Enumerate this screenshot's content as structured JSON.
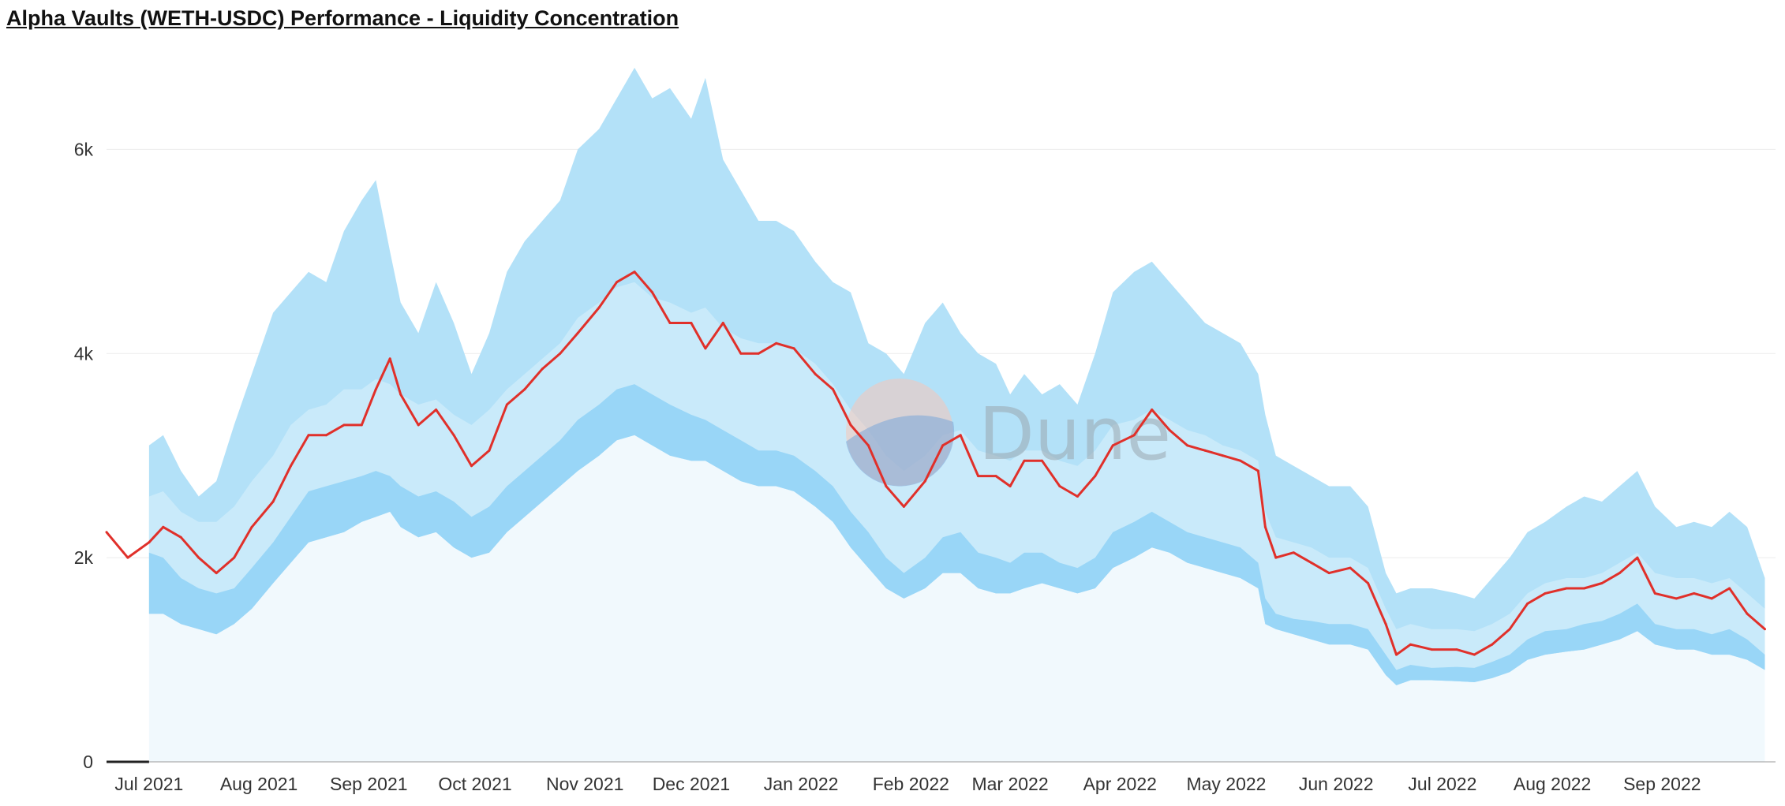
{
  "title": "Alpha Vaults (WETH-USDC) Performance - Liquidity Concentration",
  "watermark": "Dune",
  "colors": {
    "outer_band": "#b3e1f8",
    "middle_band": "#c9eafa",
    "inner_band": "#99d6f7",
    "base_fill": "#f1f9fd",
    "price_line": "#e0302a",
    "grid": "#ebebeb",
    "axis": "#222222"
  },
  "chart_data": {
    "type": "area",
    "title": "Alpha Vaults (WETH-USDC) Performance - Liquidity Concentration",
    "xlabel": "",
    "ylabel": "",
    "ylim": [
      0,
      7000
    ],
    "y_ticks": [
      {
        "value": 0,
        "label": "0"
      },
      {
        "value": 2000,
        "label": "2k"
      },
      {
        "value": 4000,
        "label": "4k"
      },
      {
        "value": 6000,
        "label": "6k"
      }
    ],
    "x_ticks": [
      {
        "date": "2021-07-01",
        "label": "Jul 2021"
      },
      {
        "date": "2021-08-01",
        "label": "Aug 2021"
      },
      {
        "date": "2021-09-01",
        "label": "Sep 2021"
      },
      {
        "date": "2021-10-01",
        "label": "Oct 2021"
      },
      {
        "date": "2021-11-01",
        "label": "Nov 2021"
      },
      {
        "date": "2021-12-01",
        "label": "Dec 2021"
      },
      {
        "date": "2022-01-01",
        "label": "Jan 2022"
      },
      {
        "date": "2022-02-01",
        "label": "Feb 2022"
      },
      {
        "date": "2022-03-01",
        "label": "Mar 2022"
      },
      {
        "date": "2022-04-01",
        "label": "Apr 2022"
      },
      {
        "date": "2022-05-01",
        "label": "May 2022"
      },
      {
        "date": "2022-06-01",
        "label": "Jun 2022"
      },
      {
        "date": "2022-07-01",
        "label": "Jul 2022"
      },
      {
        "date": "2022-08-01",
        "label": "Aug 2022"
      },
      {
        "date": "2022-09-01",
        "label": "Sep 2022"
      }
    ],
    "grid": true,
    "legend": "none",
    "x": [
      "2021-06-19",
      "2021-06-25",
      "2021-07-01",
      "2021-07-05",
      "2021-07-10",
      "2021-07-15",
      "2021-07-20",
      "2021-07-25",
      "2021-07-30",
      "2021-08-05",
      "2021-08-10",
      "2021-08-15",
      "2021-08-20",
      "2021-08-25",
      "2021-08-30",
      "2021-09-03",
      "2021-09-07",
      "2021-09-10",
      "2021-09-15",
      "2021-09-20",
      "2021-09-25",
      "2021-09-30",
      "2021-10-05",
      "2021-10-10",
      "2021-10-15",
      "2021-10-20",
      "2021-10-25",
      "2021-10-30",
      "2021-11-05",
      "2021-11-10",
      "2021-11-15",
      "2021-11-20",
      "2021-11-25",
      "2021-12-01",
      "2021-12-05",
      "2021-12-10",
      "2021-12-15",
      "2021-12-20",
      "2021-12-25",
      "2021-12-30",
      "2022-01-05",
      "2022-01-10",
      "2022-01-15",
      "2022-01-20",
      "2022-01-25",
      "2022-01-30",
      "2022-02-05",
      "2022-02-10",
      "2022-02-15",
      "2022-02-20",
      "2022-02-25",
      "2022-03-01",
      "2022-03-05",
      "2022-03-10",
      "2022-03-15",
      "2022-03-20",
      "2022-03-25",
      "2022-03-30",
      "2022-04-05",
      "2022-04-10",
      "2022-04-15",
      "2022-04-20",
      "2022-04-25",
      "2022-04-30",
      "2022-05-05",
      "2022-05-10",
      "2022-05-12",
      "2022-05-15",
      "2022-05-20",
      "2022-05-25",
      "2022-05-30",
      "2022-06-05",
      "2022-06-10",
      "2022-06-15",
      "2022-06-18",
      "2022-06-22",
      "2022-06-28",
      "2022-07-05",
      "2022-07-10",
      "2022-07-15",
      "2022-07-20",
      "2022-07-25",
      "2022-07-30",
      "2022-08-05",
      "2022-08-10",
      "2022-08-15",
      "2022-08-20",
      "2022-08-25",
      "2022-08-30",
      "2022-09-05",
      "2022-09-10",
      "2022-09-15",
      "2022-09-20",
      "2022-09-25",
      "2022-09-30"
    ],
    "series": [
      {
        "values": [
          2250,
          2000,
          2150,
          2300,
          2200,
          2000,
          1850,
          2000,
          2300,
          2550,
          2900,
          3200,
          3200,
          3300,
          3300,
          3650,
          3950,
          3600,
          3300,
          3450,
          3200,
          2900,
          3050,
          3500,
          3650,
          3850,
          4000,
          4200,
          4450,
          4700,
          4800,
          4600,
          4300,
          4300,
          4050,
          4300,
          4000,
          4000,
          4100,
          4050,
          3800,
          3650,
          3300,
          3100,
          2700,
          2500,
          2750,
          3100,
          3200,
          2800,
          2800,
          2700,
          2950,
          2950,
          2700,
          2600,
          2800,
          3100,
          3200,
          3450,
          3250,
          3100,
          3050,
          3000,
          2950,
          2850,
          2300,
          2000,
          2050,
          1950,
          1850,
          1900,
          1750,
          1350,
          1050,
          1150,
          1100,
          1100,
          1050,
          1150,
          1300,
          1550,
          1650,
          1700,
          1700,
          1750,
          1850,
          2000,
          1650,
          1600,
          1650,
          1600,
          1700,
          1450,
          1300
        ]
      }
    ],
    "bands": {
      "upper_outer": [
        null,
        null,
        3100,
        3200,
        2850,
        2600,
        2750,
        3300,
        3800,
        4400,
        4600,
        4800,
        4700,
        5200,
        5500,
        5700,
        5000,
        4500,
        4200,
        4700,
        4300,
        3800,
        4200,
        4800,
        5100,
        5300,
        5500,
        6000,
        6200,
        6500,
        6800,
        6500,
        6600,
        6300,
        6700,
        5900,
        5600,
        5300,
        5300,
        5200,
        4900,
        4700,
        4600,
        4100,
        4000,
        3800,
        4300,
        4500,
        4200,
        4000,
        3900,
        3600,
        3800,
        3600,
        3700,
        3500,
        4000,
        4600,
        4800,
        4900,
        4700,
        4500,
        4300,
        4200,
        4100,
        3800,
        3400,
        3000,
        2900,
        2800,
        2700,
        2700,
        2500,
        1850,
        1650,
        1700,
        1700,
        1650,
        1600,
        1800,
        2000,
        2250,
        2350,
        2500,
        2600,
        2550,
        2700,
        2850,
        2500,
        2300,
        2350,
        2300,
        2450,
        2300,
        1800
      ],
      "upper_inner": [
        null,
        null,
        2600,
        2650,
        2450,
        2350,
        2350,
        2500,
        2750,
        3000,
        3300,
        3450,
        3500,
        3650,
        3650,
        3750,
        3700,
        3600,
        3500,
        3550,
        3400,
        3300,
        3450,
        3650,
        3800,
        3950,
        4100,
        4350,
        4500,
        4650,
        4700,
        4550,
        4500,
        4400,
        4450,
        4250,
        4150,
        4100,
        4100,
        4050,
        3900,
        3700,
        3450,
        3250,
        3000,
        2850,
        3000,
        3200,
        3250,
        3050,
        3000,
        2950,
        3050,
        3050,
        2950,
        2900,
        3050,
        3300,
        3350,
        3450,
        3350,
        3250,
        3200,
        3100,
        3050,
        2950,
        2450,
        2200,
        2150,
        2100,
        2000,
        2000,
        1900,
        1500,
        1300,
        1350,
        1300,
        1300,
        1280,
        1350,
        1450,
        1650,
        1750,
        1800,
        1800,
        1850,
        1950,
        2050,
        1850,
        1800,
        1800,
        1750,
        1800,
        1650,
        1500
      ],
      "lower_inner": [
        null,
        null,
        2050,
        2000,
        1800,
        1700,
        1650,
        1700,
        1900,
        2150,
        2400,
        2650,
        2700,
        2750,
        2800,
        2850,
        2800,
        2700,
        2600,
        2650,
        2550,
        2400,
        2500,
        2700,
        2850,
        3000,
        3150,
        3350,
        3500,
        3650,
        3700,
        3600,
        3500,
        3400,
        3350,
        3250,
        3150,
        3050,
        3050,
        3000,
        2850,
        2700,
        2450,
        2250,
        2000,
        1850,
        2000,
        2200,
        2250,
        2050,
        2000,
        1950,
        2050,
        2050,
        1950,
        1900,
        2000,
        2250,
        2350,
        2450,
        2350,
        2250,
        2200,
        2150,
        2100,
        1950,
        1600,
        1450,
        1400,
        1380,
        1350,
        1350,
        1300,
        1050,
        900,
        950,
        920,
        930,
        920,
        980,
        1050,
        1200,
        1280,
        1300,
        1350,
        1380,
        1450,
        1550,
        1350,
        1300,
        1300,
        1250,
        1300,
        1200,
        1050
      ],
      "lower_outer": [
        null,
        null,
        1450,
        1450,
        1350,
        1300,
        1250,
        1350,
        1500,
        1750,
        1950,
        2150,
        2200,
        2250,
        2350,
        2400,
        2450,
        2300,
        2200,
        2250,
        2100,
        2000,
        2050,
        2250,
        2400,
        2550,
        2700,
        2850,
        3000,
        3150,
        3200,
        3100,
        3000,
        2950,
        2950,
        2850,
        2750,
        2700,
        2700,
        2650,
        2500,
        2350,
        2100,
        1900,
        1700,
        1600,
        1700,
        1850,
        1850,
        1700,
        1650,
        1650,
        1700,
        1750,
        1700,
        1650,
        1700,
        1900,
        2000,
        2100,
        2050,
        1950,
        1900,
        1850,
        1800,
        1700,
        1350,
        1300,
        1250,
        1200,
        1150,
        1150,
        1100,
        850,
        750,
        800,
        800,
        790,
        780,
        820,
        880,
        1000,
        1050,
        1080,
        1100,
        1150,
        1200,
        1280,
        1150,
        1100,
        1100,
        1050,
        1050,
        1000,
        900
      ]
    }
  }
}
